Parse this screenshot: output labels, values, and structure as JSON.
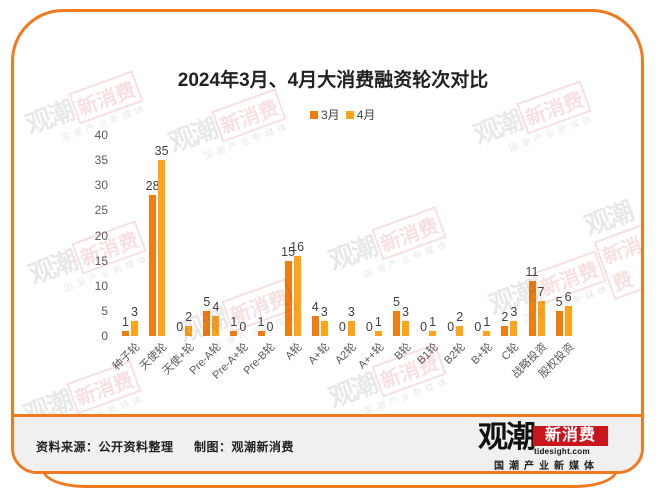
{
  "chart_data": {
    "type": "bar",
    "title": "2024年3月、4月大消费融资轮次对比",
    "xlabel": "",
    "ylabel": "",
    "ylim": [
      0,
      40
    ],
    "yticks": [
      0,
      5,
      10,
      15,
      20,
      25,
      30,
      35,
      40
    ],
    "grid": false,
    "legend_position": "top",
    "data_labels": true,
    "categories": [
      "种子轮",
      "天使轮",
      "天使+轮",
      "Pre-A轮",
      "Pre-A+轮",
      "Pre-B轮",
      "A轮",
      "A+轮",
      "A2轮",
      "A++轮",
      "B轮",
      "B1轮",
      "B2轮",
      "B+轮",
      "C轮",
      "战略投资",
      "股权投资"
    ],
    "series": [
      {
        "name": "3月",
        "color": "#F07C12",
        "values": [
          1,
          28,
          0,
          5,
          1,
          1,
          15,
          4,
          0,
          0,
          5,
          0,
          0,
          0,
          2,
          11,
          5
        ]
      },
      {
        "name": "4月",
        "color": "#FFA31A",
        "values": [
          3,
          35,
          2,
          4,
          0,
          0,
          16,
          3,
          3,
          1,
          3,
          1,
          2,
          1,
          3,
          7,
          6
        ]
      }
    ]
  },
  "footer": {
    "source": "资料来源：公开资料整理",
    "credit": "制图：观潮新消费"
  },
  "logo": {
    "main": "观潮",
    "highlight": "新消费",
    "domain": "tidesight.com",
    "slogan": "国潮产业新媒体"
  },
  "watermark": {
    "main": "观潮",
    "highlight": "新消费",
    "slogan": "国潮产业新媒体"
  },
  "colors": {
    "frame": "#F27A1E",
    "footer_bg": "#F0F0F0",
    "logo_red": "#C9161D"
  }
}
